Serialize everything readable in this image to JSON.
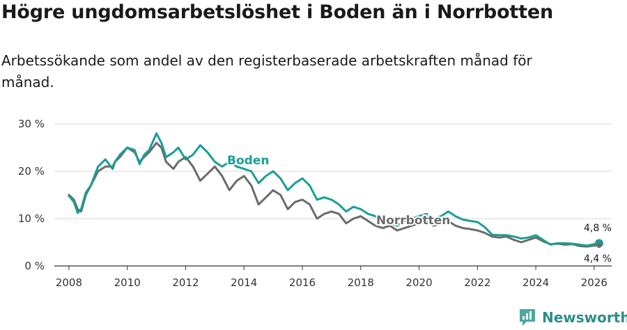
{
  "title": "Högre ungdomsarbetslöshet i Boden än i Norrbotten",
  "subtitle": "Arbetssökande som andel av den registerbaserade arbetskraften månad för månad.",
  "brand": "Newsworthy",
  "colors": {
    "boden": "#1a9e96",
    "norrbotten": "#6b6b6b",
    "grid": "#d9d9d9",
    "axis": "#333333"
  },
  "chart_data": {
    "type": "line",
    "title": "Högre ungdomsarbetslöshet i Boden än i Norrbotten",
    "xlabel": "",
    "ylabel": "",
    "xlim": [
      2007.5,
      2026.6
    ],
    "ylim": [
      0,
      30
    ],
    "y_ticks": [
      0,
      10,
      20,
      30
    ],
    "y_tick_labels": [
      "0 %",
      "10 %",
      "20 %",
      "30 %"
    ],
    "x_ticks": [
      2008,
      2010,
      2012,
      2014,
      2016,
      2018,
      2020,
      2022,
      2024,
      2026
    ],
    "x_tick_labels": [
      "2008",
      "2010",
      "2012",
      "2014",
      "2016",
      "2018",
      "2020",
      "2022",
      "2024",
      "2026"
    ],
    "series": [
      {
        "name": "Boden",
        "label": "Boden",
        "end_label": "4,8 %",
        "x": [
          2008.0,
          2008.17,
          2008.3,
          2008.42,
          2008.58,
          2008.75,
          2009.0,
          2009.25,
          2009.5,
          2009.58,
          2009.75,
          2010.0,
          2010.25,
          2010.42,
          2010.58,
          2010.75,
          2011.0,
          2011.17,
          2011.33,
          2011.58,
          2011.75,
          2012.0,
          2012.25,
          2012.5,
          2012.75,
          2013.0,
          2013.25,
          2013.5,
          2013.75,
          2014.0,
          2014.25,
          2014.5,
          2014.75,
          2015.0,
          2015.25,
          2015.5,
          2015.75,
          2016.0,
          2016.25,
          2016.5,
          2016.75,
          2017.0,
          2017.25,
          2017.5,
          2017.75,
          2018.0,
          2018.25,
          2018.5,
          2018.75,
          2019.0,
          2019.25,
          2019.5,
          2019.75,
          2020.0,
          2020.25,
          2020.5,
          2020.75,
          2021.0,
          2021.25,
          2021.5,
          2021.75,
          2022.0,
          2022.25,
          2022.5,
          2022.75,
          2023.0,
          2023.25,
          2023.5,
          2023.75,
          2024.0,
          2024.25,
          2024.5,
          2024.75,
          2025.0,
          2025.25,
          2025.5,
          2025.75,
          2026.0,
          2026.17
        ],
        "y": [
          14.8,
          13.5,
          11.2,
          12.0,
          15.5,
          17.0,
          21.0,
          22.5,
          20.5,
          22.0,
          23.5,
          25.0,
          24.5,
          21.5,
          23.5,
          24.5,
          28.0,
          26.0,
          23.0,
          24.0,
          25.0,
          22.5,
          23.5,
          25.5,
          24.0,
          22.0,
          21.0,
          22.0,
          21.0,
          20.5,
          20.0,
          17.5,
          19.0,
          20.0,
          18.5,
          16.0,
          17.5,
          18.5,
          17.0,
          14.0,
          14.5,
          14.0,
          13.0,
          11.5,
          12.5,
          12.0,
          11.0,
          10.5,
          9.5,
          9.0,
          8.5,
          9.5,
          10.0,
          10.5,
          11.0,
          10.0,
          10.5,
          11.5,
          10.5,
          9.8,
          9.5,
          9.3,
          8.2,
          6.6,
          6.5,
          6.5,
          6.2,
          5.8,
          6.0,
          6.5,
          5.5,
          4.5,
          4.8,
          4.8,
          4.7,
          4.5,
          4.3,
          4.6,
          4.8
        ]
      },
      {
        "name": "Norrbotten",
        "label": "Norrbotten",
        "end_label": "4,4 %",
        "x": [
          2008.0,
          2008.17,
          2008.3,
          2008.42,
          2008.58,
          2008.75,
          2009.0,
          2009.25,
          2009.5,
          2009.58,
          2009.75,
          2010.0,
          2010.25,
          2010.42,
          2010.58,
          2010.75,
          2011.0,
          2011.17,
          2011.33,
          2011.58,
          2011.75,
          2012.0,
          2012.25,
          2012.5,
          2012.75,
          2013.0,
          2013.25,
          2013.5,
          2013.75,
          2014.0,
          2014.25,
          2014.5,
          2014.75,
          2015.0,
          2015.25,
          2015.5,
          2015.75,
          2016.0,
          2016.25,
          2016.5,
          2016.75,
          2017.0,
          2017.25,
          2017.5,
          2017.75,
          2018.0,
          2018.25,
          2018.5,
          2018.75,
          2019.0,
          2019.25,
          2019.5,
          2019.75,
          2020.0,
          2020.25,
          2020.5,
          2020.75,
          2021.0,
          2021.25,
          2021.5,
          2021.75,
          2022.0,
          2022.25,
          2022.5,
          2022.75,
          2023.0,
          2023.25,
          2023.5,
          2023.75,
          2024.0,
          2024.25,
          2024.5,
          2024.75,
          2025.0,
          2025.25,
          2025.5,
          2025.75,
          2026.0,
          2026.17
        ],
        "y": [
          15.0,
          14.0,
          12.0,
          11.5,
          15.0,
          17.0,
          20.0,
          21.0,
          21.0,
          22.0,
          23.0,
          25.0,
          24.0,
          22.0,
          23.0,
          24.0,
          26.0,
          25.0,
          22.0,
          20.5,
          22.0,
          23.0,
          21.0,
          18.0,
          19.5,
          21.0,
          19.0,
          16.0,
          18.0,
          19.0,
          17.0,
          13.0,
          14.5,
          16.0,
          15.0,
          12.0,
          13.5,
          14.0,
          13.0,
          10.0,
          11.0,
          11.5,
          11.0,
          9.0,
          10.0,
          10.5,
          9.5,
          8.5,
          8.0,
          8.5,
          7.5,
          8.0,
          8.5,
          9.0,
          9.5,
          8.5,
          9.0,
          9.5,
          8.5,
          8.0,
          7.8,
          7.5,
          7.0,
          6.2,
          6.0,
          6.2,
          5.5,
          5.0,
          5.5,
          6.0,
          5.2,
          4.6,
          4.7,
          4.5,
          4.6,
          4.2,
          4.1,
          4.3,
          4.4
        ]
      }
    ]
  }
}
